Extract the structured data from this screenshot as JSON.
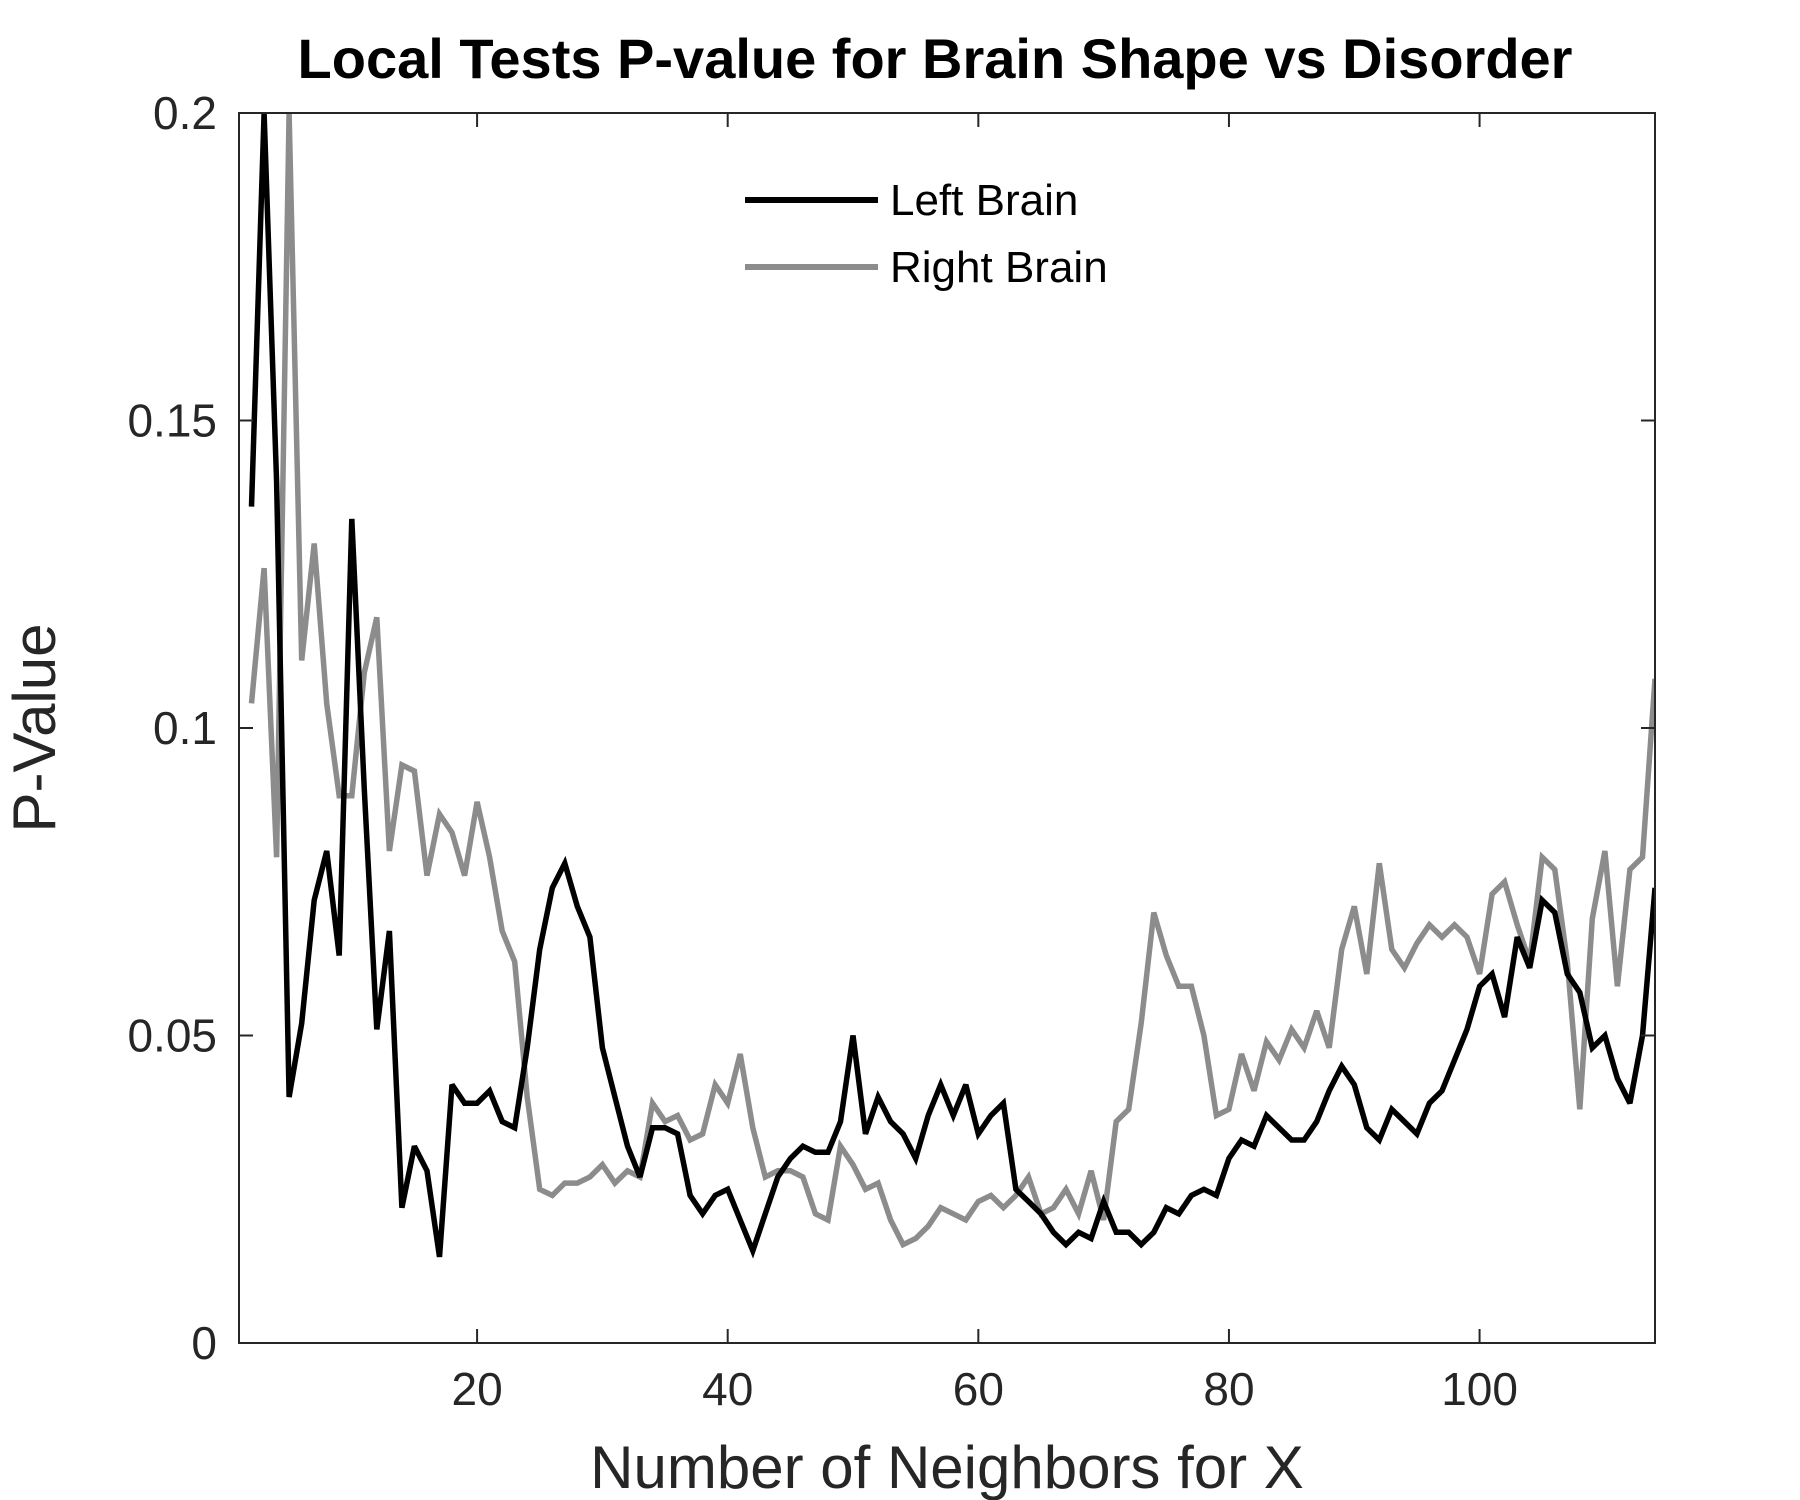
{
  "chart_data": {
    "type": "line",
    "title": "Local Tests P-value for Brain Shape vs Disorder",
    "xlabel": "Number of Neighbors for X",
    "ylabel": "P-Value",
    "xlim": [
      1,
      114
    ],
    "ylim": [
      0,
      0.2
    ],
    "xticks": [
      20,
      40,
      60,
      80,
      100
    ],
    "xtick_labels": [
      "20",
      "40",
      "60",
      "80",
      "100"
    ],
    "yticks": [
      0,
      0.05,
      0.1,
      0.15,
      0.2
    ],
    "ytick_labels": [
      "0",
      "0.05",
      "0.1",
      "0.15",
      "0.2"
    ],
    "grid": false,
    "legend_position": "top-center",
    "series": [
      {
        "name": "Left Brain",
        "color": "#000000",
        "x": [
          2,
          3,
          4,
          5,
          6,
          7,
          8,
          9,
          10,
          11,
          12,
          13,
          14,
          15,
          16,
          17,
          18,
          19,
          20,
          21,
          22,
          23,
          24,
          25,
          26,
          27,
          28,
          29,
          30,
          31,
          32,
          33,
          34,
          35,
          36,
          37,
          38,
          39,
          40,
          41,
          42,
          43,
          44,
          45,
          46,
          47,
          48,
          49,
          50,
          51,
          52,
          53,
          54,
          55,
          56,
          57,
          58,
          59,
          60,
          61,
          62,
          63,
          64,
          65,
          66,
          67,
          68,
          69,
          70,
          71,
          72,
          73,
          74,
          75,
          76,
          77,
          78,
          79,
          80,
          81,
          82,
          83,
          84,
          85,
          86,
          87,
          88,
          89,
          90,
          91,
          92,
          93,
          94,
          95,
          96,
          97,
          98,
          99,
          100,
          101,
          102,
          103,
          104,
          105,
          106,
          107,
          108,
          109,
          110,
          111,
          112,
          113,
          114
        ],
        "values": [
          0.136,
          0.2,
          0.14,
          0.04,
          0.052,
          0.072,
          0.08,
          0.063,
          0.134,
          0.09,
          0.051,
          0.067,
          0.022,
          0.032,
          0.028,
          0.014,
          0.042,
          0.039,
          0.039,
          0.041,
          0.036,
          0.035,
          0.048,
          0.064,
          0.074,
          0.078,
          0.071,
          0.066,
          0.048,
          0.04,
          0.032,
          0.027,
          0.035,
          0.035,
          0.034,
          0.024,
          0.021,
          0.024,
          0.025,
          0.02,
          0.015,
          0.021,
          0.027,
          0.03,
          0.032,
          0.031,
          0.031,
          0.036,
          0.05,
          0.034,
          0.04,
          0.036,
          0.034,
          0.03,
          0.037,
          0.042,
          0.037,
          0.042,
          0.034,
          0.037,
          0.039,
          0.025,
          0.023,
          0.021,
          0.018,
          0.016,
          0.018,
          0.017,
          0.023,
          0.018,
          0.018,
          0.016,
          0.018,
          0.022,
          0.021,
          0.024,
          0.025,
          0.024,
          0.03,
          0.033,
          0.032,
          0.037,
          0.035,
          0.033,
          0.033,
          0.036,
          0.041,
          0.045,
          0.042,
          0.035,
          0.033,
          0.038,
          0.036,
          0.034,
          0.039,
          0.041,
          0.046,
          0.051,
          0.058,
          0.06,
          0.053,
          0.066,
          0.061,
          0.072,
          0.07,
          0.06,
          0.057,
          0.048,
          0.05,
          0.043,
          0.039,
          0.05,
          0.074
        ]
      },
      {
        "name": "Right Brain",
        "color": "#8c8c8c",
        "x": [
          2,
          3,
          4,
          5,
          6,
          7,
          8,
          9,
          10,
          11,
          12,
          13,
          14,
          15,
          16,
          17,
          18,
          19,
          20,
          21,
          22,
          23,
          24,
          25,
          26,
          27,
          28,
          29,
          30,
          31,
          32,
          33,
          34,
          35,
          36,
          37,
          38,
          39,
          40,
          41,
          42,
          43,
          44,
          45,
          46,
          47,
          48,
          49,
          50,
          51,
          52,
          53,
          54,
          55,
          56,
          57,
          58,
          59,
          60,
          61,
          62,
          63,
          64,
          65,
          66,
          67,
          68,
          69,
          70,
          71,
          72,
          73,
          74,
          75,
          76,
          77,
          78,
          79,
          80,
          81,
          82,
          83,
          84,
          85,
          86,
          87,
          88,
          89,
          90,
          91,
          92,
          93,
          94,
          95,
          96,
          97,
          98,
          99,
          100,
          101,
          102,
          103,
          104,
          105,
          106,
          107,
          108,
          109,
          110,
          111,
          112,
          113,
          114
        ],
        "values": [
          0.104,
          0.126,
          0.079,
          0.2,
          0.111,
          0.13,
          0.104,
          0.089,
          0.089,
          0.109,
          0.118,
          0.08,
          0.094,
          0.093,
          0.076,
          0.086,
          0.083,
          0.076,
          0.088,
          0.079,
          0.067,
          0.062,
          0.04,
          0.025,
          0.024,
          0.026,
          0.026,
          0.027,
          0.029,
          0.026,
          0.028,
          0.027,
          0.039,
          0.036,
          0.037,
          0.033,
          0.034,
          0.042,
          0.039,
          0.047,
          0.035,
          0.027,
          0.028,
          0.028,
          0.027,
          0.021,
          0.02,
          0.032,
          0.029,
          0.025,
          0.026,
          0.02,
          0.016,
          0.017,
          0.019,
          0.022,
          0.021,
          0.02,
          0.023,
          0.024,
          0.022,
          0.024,
          0.027,
          0.021,
          0.022,
          0.025,
          0.021,
          0.028,
          0.02,
          0.036,
          0.038,
          0.052,
          0.07,
          0.063,
          0.058,
          0.058,
          0.05,
          0.037,
          0.038,
          0.047,
          0.041,
          0.049,
          0.046,
          0.051,
          0.048,
          0.054,
          0.048,
          0.064,
          0.071,
          0.06,
          0.078,
          0.064,
          0.061,
          0.065,
          0.068,
          0.066,
          0.068,
          0.066,
          0.06,
          0.073,
          0.075,
          0.068,
          0.062,
          0.079,
          0.077,
          0.062,
          0.038,
          0.069,
          0.08,
          0.058,
          0.077,
          0.079,
          0.108
        ]
      }
    ]
  }
}
